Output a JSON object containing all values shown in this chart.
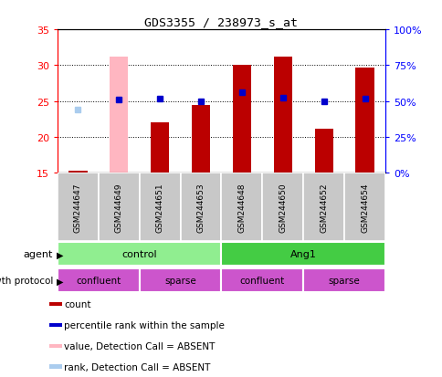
{
  "title": "GDS3355 / 238973_s_at",
  "samples": [
    "GSM244647",
    "GSM244649",
    "GSM244651",
    "GSM244653",
    "GSM244648",
    "GSM244650",
    "GSM244652",
    "GSM244654"
  ],
  "count_values": [
    15.3,
    null,
    22.0,
    24.5,
    30.0,
    31.2,
    21.2,
    29.7
  ],
  "count_absent": [
    null,
    31.2,
    null,
    null,
    null,
    null,
    null,
    null
  ],
  "rank_values": [
    null,
    25.2,
    25.3,
    25.0,
    26.3,
    25.5,
    25.0,
    25.4
  ],
  "rank_absent": [
    23.8,
    null,
    null,
    null,
    null,
    null,
    null,
    null
  ],
  "ylim_left": [
    15,
    35
  ],
  "ylim_right": [
    0,
    100
  ],
  "yticks_left": [
    15,
    20,
    25,
    30,
    35
  ],
  "yticks_right": [
    0,
    25,
    50,
    75,
    100
  ],
  "agent_groups": [
    {
      "label": "control",
      "start": 0,
      "end": 4,
      "color": "#90EE90"
    },
    {
      "label": "Ang1",
      "start": 4,
      "end": 8,
      "color": "#44CC44"
    }
  ],
  "protocol_segs": [
    {
      "label": "confluent",
      "start": 0,
      "end": 2
    },
    {
      "label": "sparse",
      "start": 2,
      "end": 4
    },
    {
      "label": "confluent",
      "start": 4,
      "end": 6
    },
    {
      "label": "sparse",
      "start": 6,
      "end": 8
    }
  ],
  "bar_color_present": "#BB0000",
  "bar_color_absent": "#FFB6C1",
  "dot_color_present": "#0000CC",
  "dot_color_absent": "#AACCEE",
  "protocol_color": "#CC55CC",
  "bar_bottom": 15,
  "legend_items": [
    {
      "label": "count",
      "color": "#BB0000"
    },
    {
      "label": "percentile rank within the sample",
      "color": "#0000CC"
    },
    {
      "label": "value, Detection Call = ABSENT",
      "color": "#FFB6C1"
    },
    {
      "label": "rank, Detection Call = ABSENT",
      "color": "#AACCEE"
    }
  ]
}
